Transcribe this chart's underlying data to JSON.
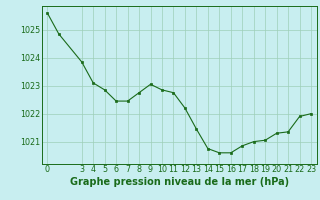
{
  "x": [
    0,
    1,
    3,
    4,
    5,
    6,
    7,
    8,
    9,
    10,
    11,
    12,
    13,
    14,
    15,
    16,
    17,
    18,
    19,
    20,
    21,
    22,
    23
  ],
  "y": [
    1025.6,
    1024.85,
    1023.85,
    1023.1,
    1022.85,
    1022.45,
    1022.45,
    1022.75,
    1023.05,
    1022.85,
    1022.75,
    1022.2,
    1021.45,
    1020.75,
    1020.6,
    1020.6,
    1020.85,
    1021.0,
    1021.05,
    1021.3,
    1021.35,
    1021.9,
    1022.0
  ],
  "line_color": "#1a6b1a",
  "marker_color": "#1a6b1a",
  "bg_color": "#c8eef0",
  "grid_color": "#9ecfb8",
  "xlabel": "Graphe pression niveau de la mer (hPa)",
  "xticks": [
    0,
    3,
    4,
    5,
    6,
    7,
    8,
    9,
    10,
    11,
    12,
    13,
    14,
    15,
    16,
    17,
    18,
    19,
    20,
    21,
    22,
    23
  ],
  "yticks": [
    1021,
    1022,
    1023,
    1024,
    1025
  ],
  "ylim": [
    1020.2,
    1025.85
  ],
  "xlim": [
    -0.5,
    23.5
  ],
  "xlabel_fontsize": 7.0,
  "tick_fontsize": 5.8
}
